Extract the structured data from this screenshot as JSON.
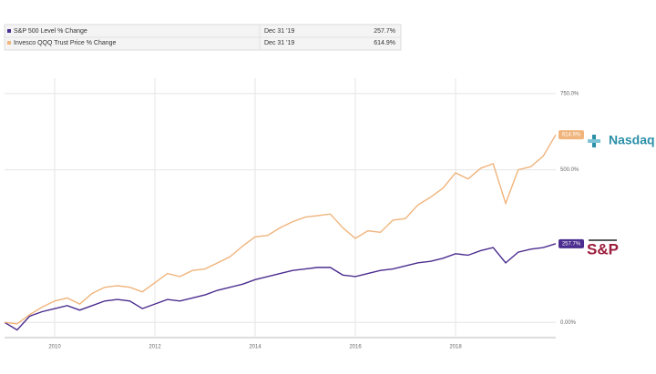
{
  "chart_data": {
    "type": "line",
    "x": [
      2009,
      2009.25,
      2009.5,
      2009.75,
      2010,
      2010.25,
      2010.5,
      2010.75,
      2011,
      2011.25,
      2011.5,
      2011.75,
      2012,
      2012.25,
      2012.5,
      2012.75,
      2013,
      2013.25,
      2013.5,
      2013.75,
      2014,
      2014.25,
      2014.5,
      2014.75,
      2015,
      2015.25,
      2015.5,
      2015.75,
      2016,
      2016.25,
      2016.5,
      2016.75,
      2017,
      2017.25,
      2017.5,
      2017.75,
      2018,
      2018.25,
      2018.5,
      2018.75,
      2019,
      2019.25,
      2019.5,
      2019.75,
      2020
    ],
    "series": [
      {
        "name": "S&P 500 Level % Change",
        "color": "#4b2d8f",
        "date": "Dec 31 '19",
        "last_label": "257.7%",
        "values": [
          0,
          -25,
          20,
          35,
          45,
          55,
          40,
          55,
          70,
          75,
          70,
          45,
          60,
          75,
          70,
          80,
          90,
          105,
          115,
          125,
          140,
          150,
          160,
          170,
          175,
          180,
          180,
          155,
          150,
          160,
          170,
          175,
          185,
          195,
          200,
          210,
          225,
          220,
          235,
          245,
          195,
          230,
          240,
          245,
          257.7
        ]
      },
      {
        "name": "Invesco QQQ Trust Price % Change",
        "color": "#f0b47c",
        "date": "Dec 31 '19",
        "last_label": "614.9%",
        "values": [
          0,
          -5,
          25,
          50,
          70,
          80,
          60,
          95,
          115,
          120,
          115,
          100,
          130,
          160,
          150,
          170,
          175,
          195,
          215,
          250,
          280,
          285,
          310,
          330,
          345,
          350,
          355,
          310,
          275,
          300,
          295,
          335,
          340,
          385,
          410,
          440,
          490,
          470,
          505,
          520,
          390,
          500,
          510,
          545,
          614.9
        ]
      }
    ],
    "xlim": [
      2009,
      2020
    ],
    "xticks": [
      2010,
      2012,
      2014,
      2016,
      2018
    ],
    "ylim": [
      -50,
      800
    ],
    "yticks": [
      {
        "value": 0,
        "label": "0.00%"
      },
      {
        "value": 500,
        "label": "500.0%"
      },
      {
        "value": 750,
        "label": "750.0%"
      }
    ],
    "grid": true,
    "annotations": [
      "Nasdaq",
      "S&P"
    ]
  }
}
